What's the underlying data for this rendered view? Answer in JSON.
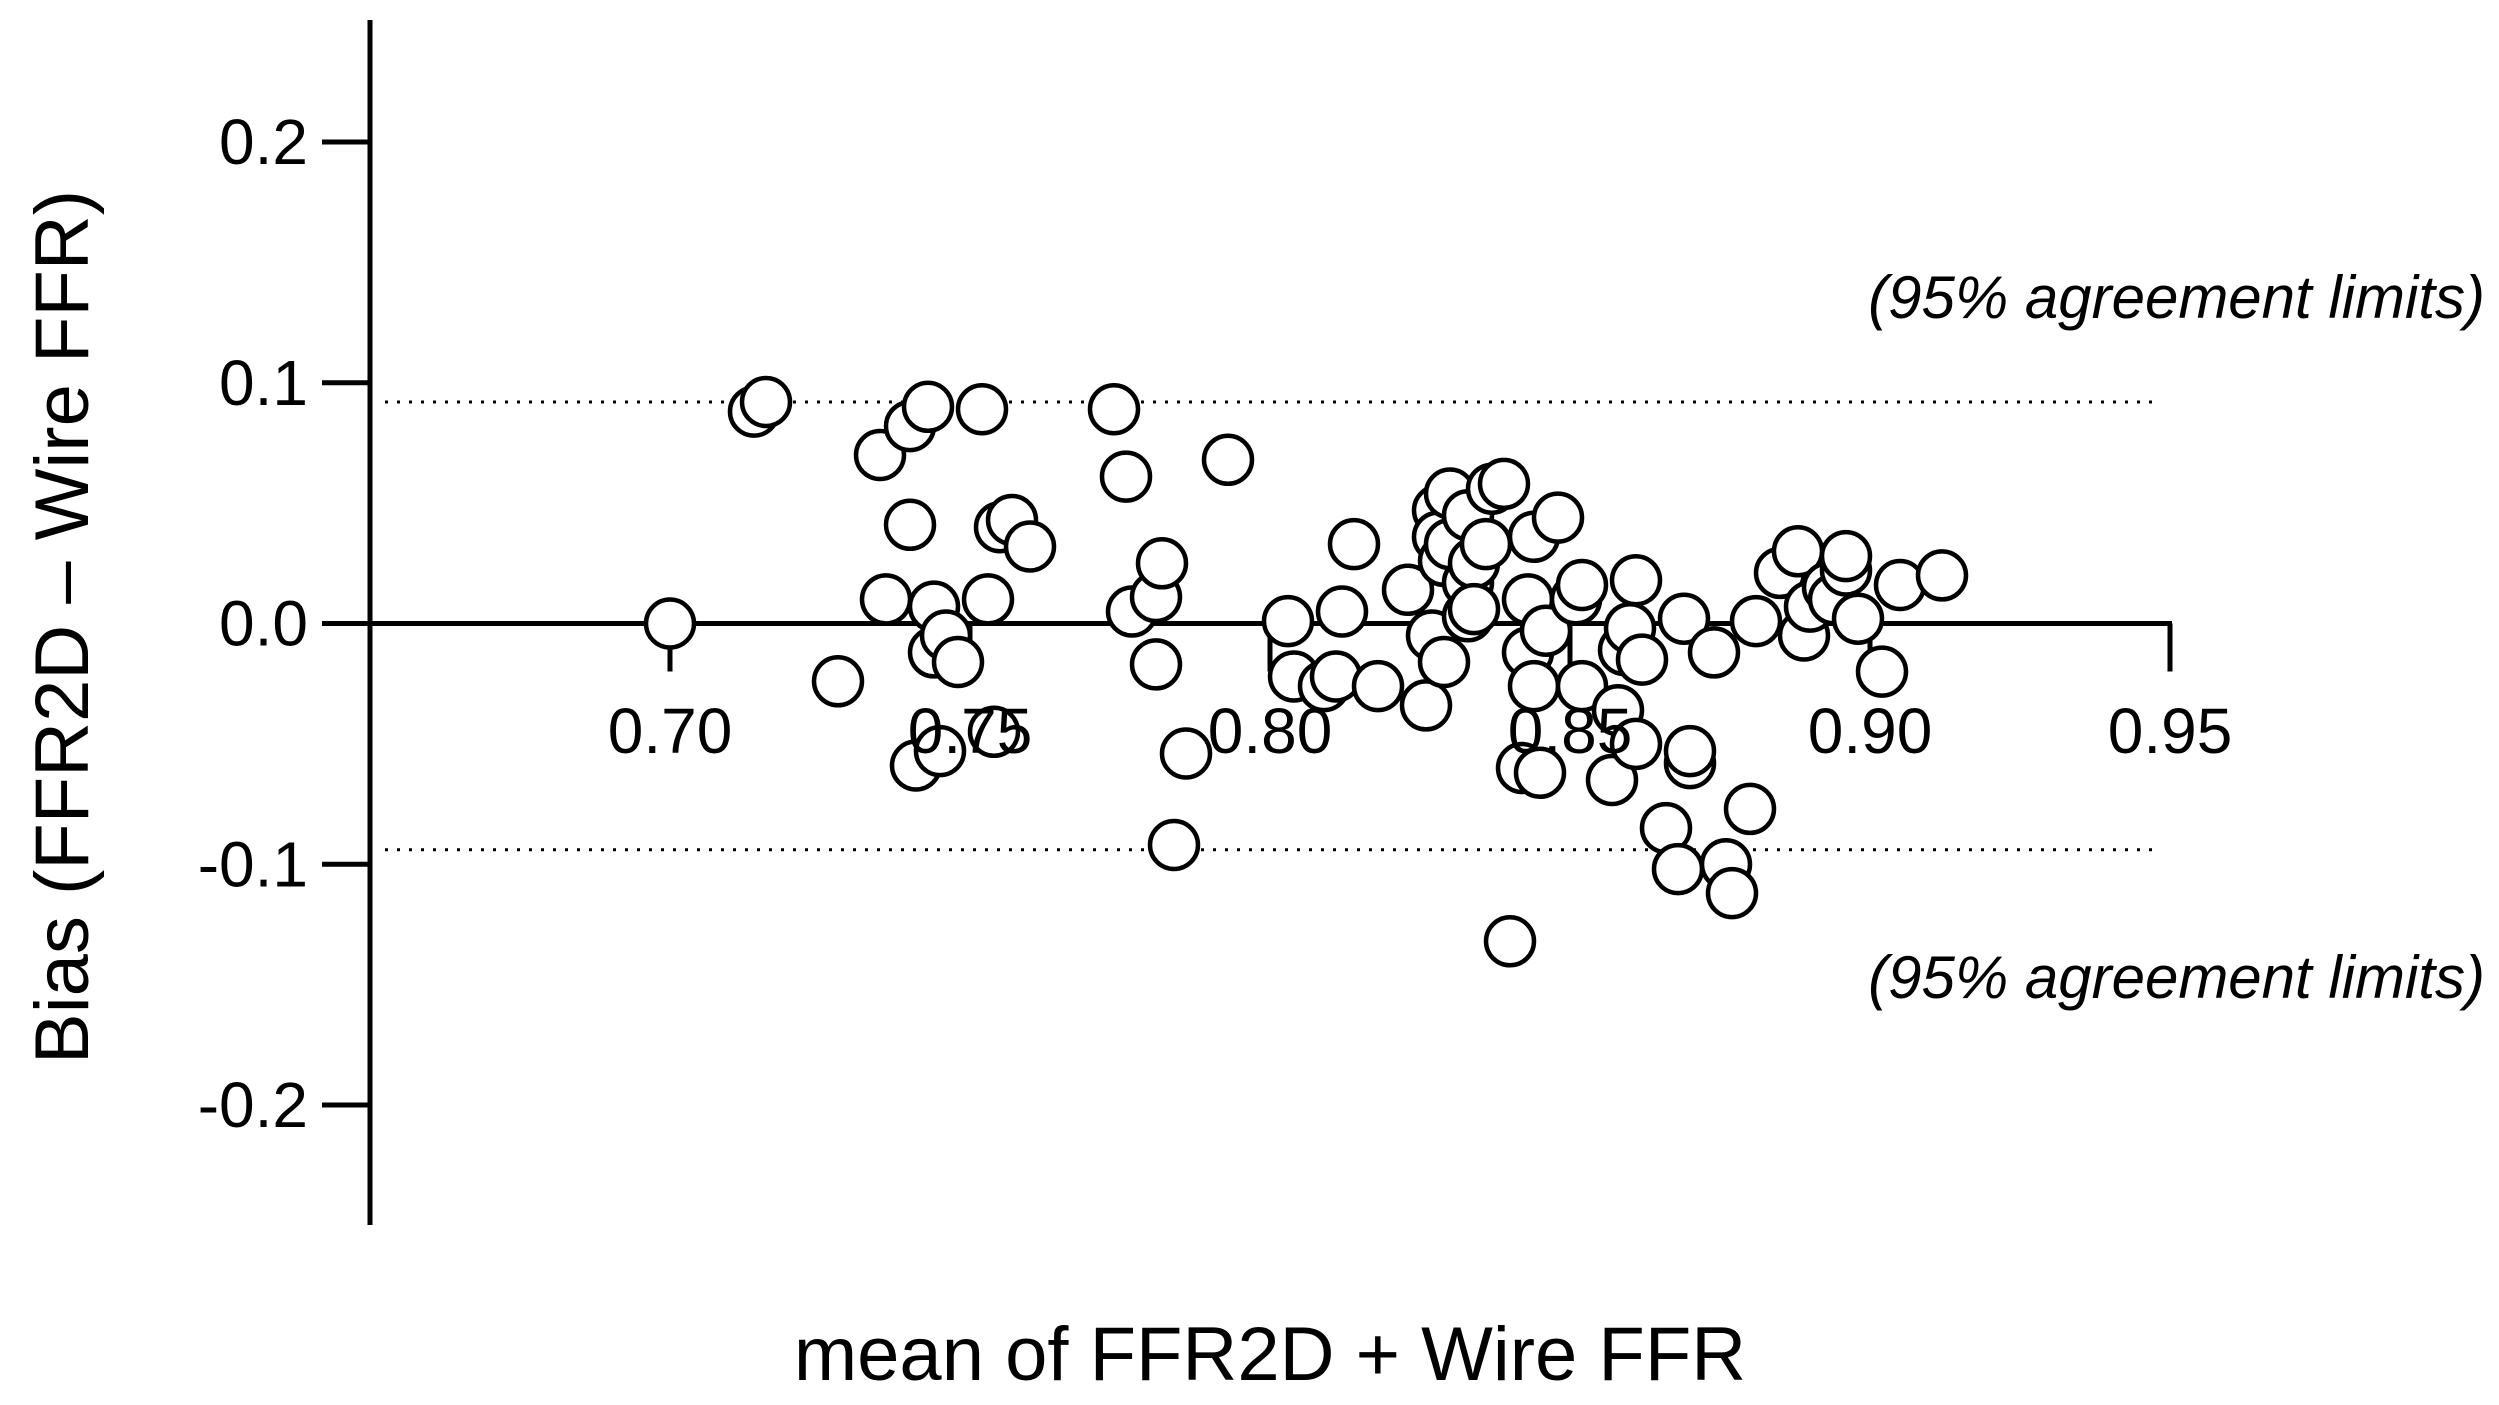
{
  "chart_data": {
    "type": "scatter",
    "title": "",
    "xlabel": "mean of FFR2D + Wire FFR",
    "ylabel": "Bias (FFR2D – Wire FFR)",
    "xlim": [
      0.65,
      0.95
    ],
    "ylim": [
      -0.25,
      0.25
    ],
    "x_ticks": [
      {
        "value": 0.7,
        "label": "0.70"
      },
      {
        "value": 0.75,
        "label": "0.75"
      },
      {
        "value": 0.8,
        "label": "0.80"
      },
      {
        "value": 0.85,
        "label": "0.85"
      },
      {
        "value": 0.9,
        "label": "0.90"
      },
      {
        "value": 0.95,
        "label": "0.95"
      }
    ],
    "y_ticks": [
      {
        "value": 0.2,
        "label": "0.2"
      },
      {
        "value": 0.1,
        "label": "0.1"
      },
      {
        "value": 0.0,
        "label": "0.0"
      },
      {
        "value": -0.1,
        "label": "-0.1"
      },
      {
        "value": -0.2,
        "label": "-0.2"
      }
    ],
    "agreement_limits": {
      "upper": 0.092,
      "lower": -0.094,
      "upper_label": "(95% agreement limits)",
      "lower_label": "(95% agreement limits)",
      "line_style": "dotted"
    },
    "marker": {
      "shape": "open-circle",
      "stroke": "#000000",
      "fill": "#ffffff"
    },
    "grid": false,
    "legend": "none",
    "x": [
      0.7,
      0.714,
      0.716,
      0.728,
      0.735,
      0.736,
      0.74,
      0.74,
      0.741,
      0.743,
      0.744,
      0.744,
      0.745,
      0.746,
      0.748,
      0.752,
      0.753,
      0.754,
      0.755,
      0.757,
      0.76,
      0.774,
      0.776,
      0.777,
      0.781,
      0.781,
      0.782,
      0.784,
      0.786,
      0.793,
      0.803,
      0.804,
      0.809,
      0.811,
      0.812,
      0.814,
      0.818,
      0.823,
      0.826,
      0.827,
      0.828,
      0.828,
      0.829,
      0.829,
      0.83,
      0.83,
      0.833,
      0.833,
      0.833,
      0.834,
      0.834,
      0.836,
      0.837,
      0.839,
      0.84,
      0.842,
      0.843,
      0.843,
      0.844,
      0.844,
      0.845,
      0.846,
      0.848,
      0.851,
      0.852,
      0.852,
      0.857,
      0.858,
      0.859,
      0.86,
      0.861,
      0.861,
      0.862,
      0.866,
      0.868,
      0.869,
      0.87,
      0.87,
      0.874,
      0.876,
      0.877,
      0.88,
      0.881,
      0.885,
      0.888,
      0.889,
      0.89,
      0.893,
      0.894,
      0.896,
      0.896,
      0.898,
      0.902,
      0.905,
      0.912
    ],
    "y": [
      0.0,
      0.088,
      0.092,
      -0.024,
      0.07,
      0.01,
      0.082,
      0.041,
      -0.059,
      0.09,
      0.007,
      -0.012,
      -0.053,
      -0.005,
      -0.016,
      0.089,
      0.01,
      -0.045,
      0.04,
      0.043,
      0.032,
      0.089,
      0.061,
      0.005,
      -0.017,
      0.011,
      0.025,
      -0.092,
      -0.054,
      0.068,
      0.001,
      -0.022,
      -0.026,
      -0.022,
      0.005,
      0.033,
      -0.026,
      0.014,
      -0.034,
      -0.005,
      0.047,
      0.036,
      0.026,
      -0.016,
      0.054,
      0.033,
      0.017,
      0.045,
      0.003,
      0.025,
      0.006,
      0.033,
      0.056,
      0.058,
      -0.132,
      -0.06,
      0.01,
      -0.012,
      -0.026,
      0.036,
      -0.062,
      -0.003,
      0.044,
      0.01,
      -0.026,
      0.016,
      -0.065,
      -0.036,
      -0.011,
      -0.002,
      0.018,
      -0.05,
      -0.015,
      -0.085,
      -0.102,
      0.002,
      -0.058,
      -0.053,
      -0.012,
      -0.1,
      -0.112,
      -0.077,
      0.001,
      0.021,
      0.03,
      -0.005,
      0.007,
      0.015,
      0.01,
      0.022,
      0.028,
      0.002,
      -0.02,
      0.016,
      0.02
    ]
  }
}
